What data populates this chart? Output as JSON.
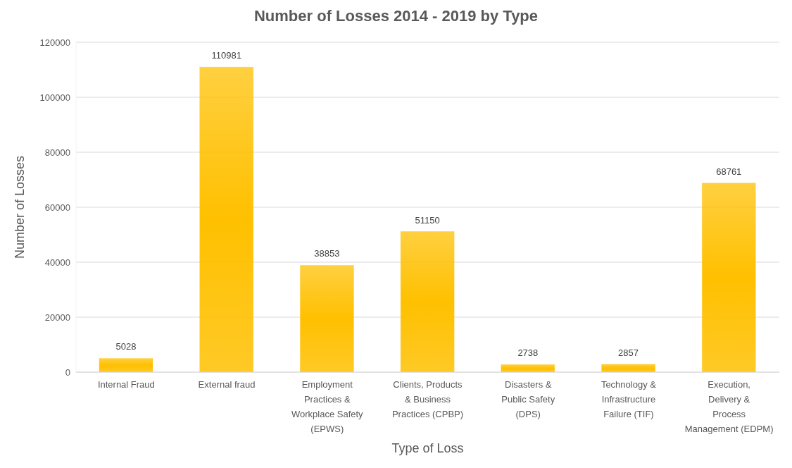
{
  "chart_data": {
    "type": "bar",
    "title": "Number of Losses 2014 - 2019 by Type",
    "xlabel": "Type of Loss",
    "ylabel": "Number of Losses",
    "categories": [
      "Internal Fraud",
      "External fraud",
      "Employment Practices & Workplace Safety (EPWS)",
      "Clients, Products & Business Practices (CPBP)",
      "Disasters & Public Safety (DPS)",
      "Technology & Infrastructure Failure (TIF)",
      "Execution, Delivery & Process Management (EDPM)"
    ],
    "values": [
      5028,
      110981,
      38853,
      51150,
      2738,
      2857,
      68761
    ],
    "color": "#ffc000",
    "ylim": [
      0,
      120000
    ],
    "yticks": [
      0,
      20000,
      40000,
      60000,
      80000,
      100000,
      120000
    ],
    "grid": "y",
    "data_labels": true
  }
}
